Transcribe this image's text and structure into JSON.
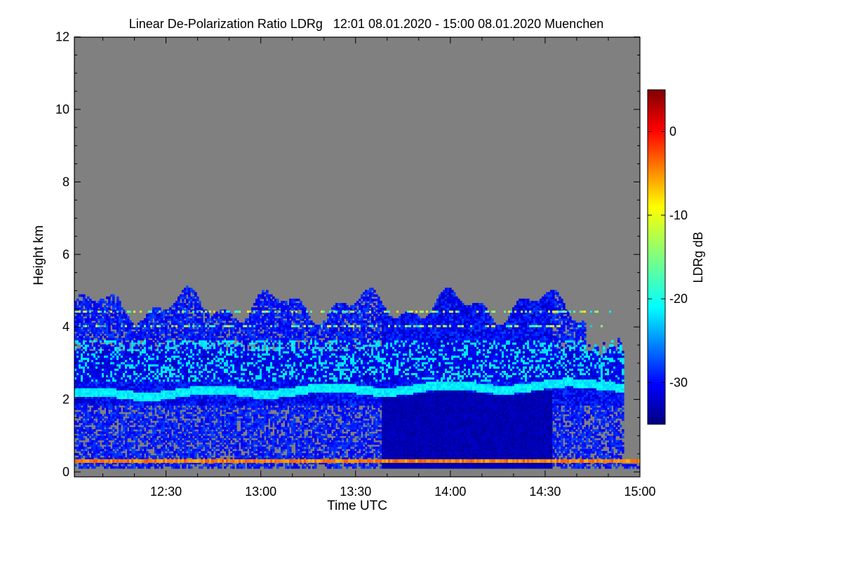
{
  "chart_data": {
    "type": "heatmap",
    "title": "Linear De-Polarization Ratio LDRg   12:01 08.01.2020 - 15:00 08.01.2020 Muenchen",
    "xlabel": "Time UTC",
    "ylabel": "Height km",
    "xlim": [
      "12:01",
      "15:00"
    ],
    "ylim": [
      0,
      12
    ],
    "x_ticks": [
      "12:30",
      "13:00",
      "13:30",
      "14:00",
      "14:30",
      "15:00"
    ],
    "y_ticks": [
      "0",
      "2",
      "4",
      "6",
      "8",
      "10",
      "12"
    ],
    "colorbar": {
      "label": "LDRg dB",
      "range": [
        -35,
        5
      ],
      "ticks": [
        "0",
        "-10",
        "-20",
        "-30"
      ],
      "colormap": "jet"
    },
    "background_color": "#808080",
    "features": {
      "cloud_top_km": [
        4.5,
        5.2
      ],
      "cloud_base_km": 0.1,
      "bright_band_km": [
        2.1,
        2.4
      ],
      "bright_band_ldr_db": -22,
      "cloud_ldr_db": [
        -33,
        -20
      ],
      "near_surface_layer_km": 0.3,
      "near_surface_layer_ldr_db": -3,
      "low_ldr_block_time": [
        "13:38",
        "14:32"
      ],
      "low_ldr_block_ldr_db": -34
    }
  }
}
